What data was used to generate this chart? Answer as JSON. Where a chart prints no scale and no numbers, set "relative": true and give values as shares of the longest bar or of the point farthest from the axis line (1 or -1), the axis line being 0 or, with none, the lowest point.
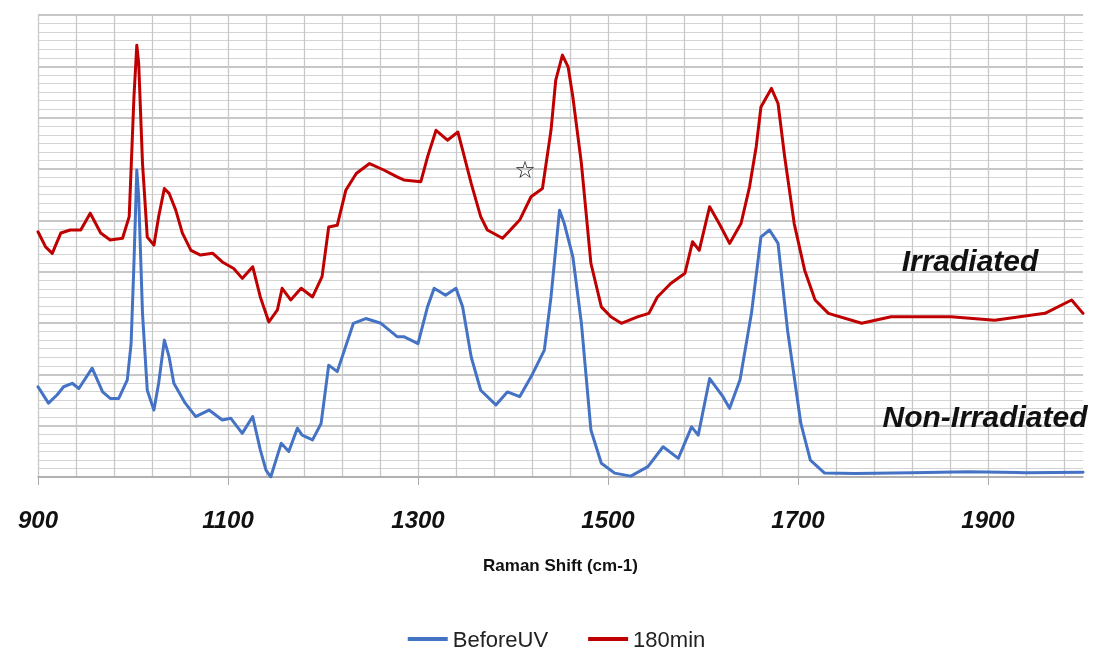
{
  "chart_data": {
    "type": "line",
    "relative": true,
    "xlabel": "Raman Shift (cm-1)",
    "xlim": [
      900,
      2000
    ],
    "xticks": [
      900,
      1100,
      1300,
      1500,
      1700,
      1900
    ],
    "grid": true,
    "legend": "bottom",
    "marker": "none",
    "line_style": "solid",
    "annotations": [
      "Irradiated",
      "Non-Irradiated",
      "☆"
    ],
    "series": [
      {
        "name": "BeforeUV",
        "color": "#4472c4",
        "x": [
          900,
          911,
          920,
          927,
          936,
          943,
          957,
          968,
          976,
          985,
          994,
          998,
          1001,
          1004,
          1006,
          1010,
          1015,
          1022,
          1027,
          1033,
          1038,
          1043,
          1055,
          1066,
          1080,
          1094,
          1103,
          1115,
          1126,
          1134,
          1140,
          1145,
          1156,
          1164,
          1173,
          1178,
          1189,
          1198,
          1206,
          1215,
          1232,
          1245,
          1261,
          1278,
          1285,
          1300,
          1310,
          1317,
          1329,
          1340,
          1347,
          1356,
          1366,
          1382,
          1394,
          1407,
          1419,
          1433,
          1440,
          1449,
          1454,
          1463,
          1472,
          1482,
          1493,
          1507,
          1524,
          1542,
          1558,
          1574,
          1588,
          1595,
          1607,
          1621,
          1628,
          1639,
          1651,
          1661,
          1670,
          1679,
          1689,
          1703,
          1713,
          1728,
          1760,
          1820,
          1880,
          1940,
          2000
        ],
        "values": [
          0.209,
          0.171,
          0.19,
          0.209,
          0.217,
          0.205,
          0.252,
          0.197,
          0.182,
          0.182,
          0.225,
          0.309,
          0.495,
          0.711,
          0.649,
          0.379,
          0.201,
          0.155,
          0.217,
          0.317,
          0.278,
          0.217,
          0.171,
          0.14,
          0.155,
          0.132,
          0.136,
          0.101,
          0.14,
          0.063,
          0.016,
          0.0,
          0.078,
          0.059,
          0.113,
          0.097,
          0.086,
          0.124,
          0.259,
          0.244,
          0.356,
          0.367,
          0.356,
          0.325,
          0.325,
          0.309,
          0.394,
          0.437,
          0.421,
          0.437,
          0.394,
          0.278,
          0.201,
          0.167,
          0.197,
          0.186,
          0.232,
          0.294,
          0.417,
          0.618,
          0.587,
          0.51,
          0.356,
          0.109,
          0.032,
          0.009,
          0.002,
          0.024,
          0.07,
          0.043,
          0.116,
          0.097,
          0.228,
          0.186,
          0.159,
          0.225,
          0.379,
          0.556,
          0.572,
          0.541,
          0.34,
          0.124,
          0.039,
          0.009,
          0.008,
          0.01,
          0.012,
          0.01,
          0.011
        ]
      },
      {
        "name": "180min",
        "color": "#c00000",
        "x": [
          900,
          908,
          915,
          924,
          934,
          945,
          955,
          966,
          976,
          989,
          996,
          1001,
          1004,
          1006,
          1010,
          1015,
          1022,
          1027,
          1033,
          1038,
          1045,
          1052,
          1061,
          1071,
          1084,
          1094,
          1106,
          1115,
          1126,
          1134,
          1143,
          1152,
          1157,
          1166,
          1177,
          1189,
          1199,
          1206,
          1215,
          1224,
          1235,
          1249,
          1264,
          1278,
          1285,
          1303,
          1310,
          1319,
          1331,
          1342,
          1347,
          1356,
          1366,
          1373,
          1389,
          1407,
          1419,
          1431,
          1440,
          1445,
          1452,
          1458,
          1463,
          1472,
          1482,
          1493,
          1503,
          1514,
          1531,
          1543,
          1552,
          1566,
          1581,
          1589,
          1596,
          1607,
          1617,
          1628,
          1640,
          1649,
          1656,
          1661,
          1672,
          1679,
          1686,
          1696,
          1707,
          1718,
          1732,
          1767,
          1798,
          1861,
          1907,
          1960,
          1988,
          2000
        ],
        "values": [
          0.568,
          0.533,
          0.518,
          0.565,
          0.572,
          0.572,
          0.611,
          0.565,
          0.549,
          0.553,
          0.603,
          0.88,
          1.0,
          0.958,
          0.727,
          0.556,
          0.537,
          0.603,
          0.668,
          0.657,
          0.618,
          0.565,
          0.525,
          0.514,
          0.518,
          0.498,
          0.483,
          0.46,
          0.487,
          0.417,
          0.359,
          0.387,
          0.437,
          0.41,
          0.437,
          0.417,
          0.464,
          0.579,
          0.583,
          0.664,
          0.703,
          0.726,
          0.711,
          0.695,
          0.688,
          0.684,
          0.741,
          0.803,
          0.78,
          0.799,
          0.757,
          0.68,
          0.603,
          0.572,
          0.553,
          0.595,
          0.649,
          0.668,
          0.803,
          0.919,
          0.977,
          0.95,
          0.88,
          0.726,
          0.495,
          0.394,
          0.371,
          0.356,
          0.371,
          0.379,
          0.417,
          0.448,
          0.472,
          0.545,
          0.525,
          0.626,
          0.587,
          0.541,
          0.587,
          0.672,
          0.765,
          0.857,
          0.9,
          0.865,
          0.741,
          0.587,
          0.479,
          0.41,
          0.379,
          0.356,
          0.371,
          0.371,
          0.363,
          0.379,
          0.41,
          0.379
        ]
      }
    ]
  }
}
